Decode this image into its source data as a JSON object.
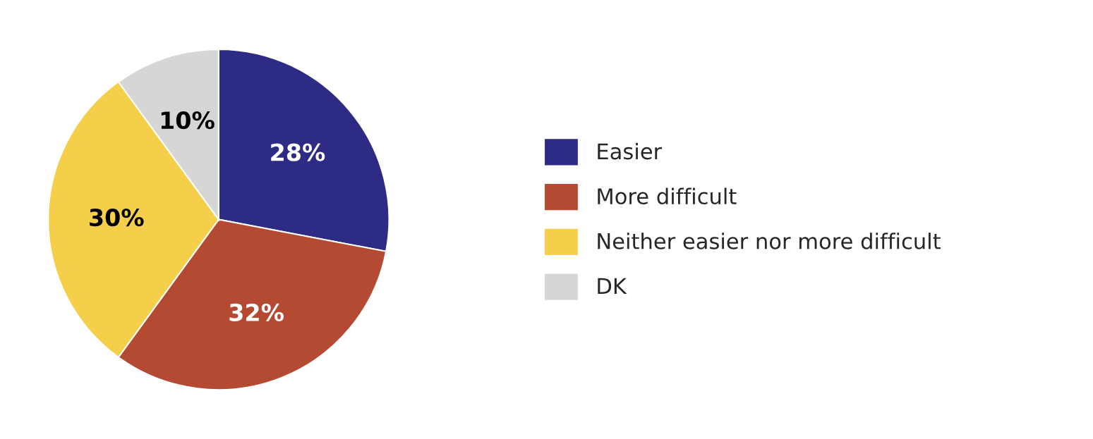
{
  "chart_data": {
    "type": "pie",
    "categories": [
      "Easier",
      "More difficult",
      "Neither easier nor more difficult",
      "DK"
    ],
    "values": [
      28,
      32,
      30,
      10
    ],
    "colors": [
      "#2e2b85",
      "#b54a32",
      "#f6cf4a",
      "#d6d6d6"
    ],
    "value_labels": [
      "28%",
      "32%",
      "30%",
      "10%"
    ],
    "legend": "right"
  }
}
